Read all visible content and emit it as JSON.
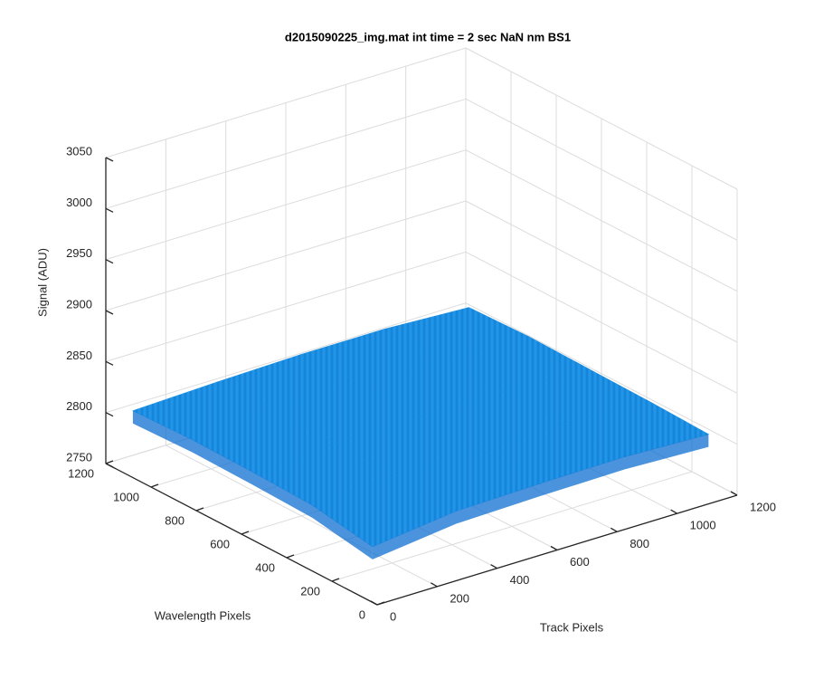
{
  "chart_data": {
    "type": "surface",
    "title": "d2015090225_img.mat int time = 2 sec  NaN nm BS1",
    "xlabel": "Track Pixels",
    "ylabel": "Wavelength Pixels",
    "zlabel": "Signal (ADU)",
    "xlim": [
      0,
      1200
    ],
    "ylim": [
      0,
      1200
    ],
    "zlim": [
      2750,
      3050
    ],
    "xticks": [
      0,
      200,
      400,
      600,
      800,
      1000,
      1200
    ],
    "yticks": [
      0,
      200,
      400,
      600,
      800,
      1000,
      1200
    ],
    "zticks": [
      2750,
      2800,
      2850,
      2900,
      2950,
      3000,
      3050
    ],
    "grid": true,
    "color": "#1a8fe3",
    "x": [
      60,
      340,
      620,
      900,
      1180
    ],
    "y": [
      100,
      365,
      630,
      895,
      1160
    ],
    "z": [
      [
        2790,
        2800,
        2802,
        2803,
        2800
      ],
      [
        2800,
        2804,
        2805,
        2805,
        2802
      ],
      [
        2802,
        2805,
        2806,
        2806,
        2803
      ],
      [
        2803,
        2806,
        2808,
        2808,
        2804
      ],
      [
        2801,
        2804,
        2806,
        2806,
        2802
      ]
    ]
  }
}
